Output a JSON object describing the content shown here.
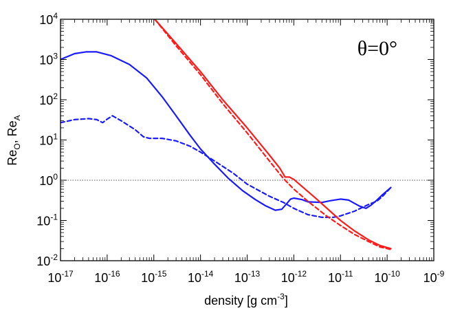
{
  "chart_data": {
    "type": "line",
    "xlabel": "density [g cm",
    "xlabel_sup": "-3",
    "xlabel_end": "]",
    "ylabel_parts": [
      "Re",
      "O",
      ", Re",
      "A"
    ],
    "annotation": "θ=0°",
    "x_scale": "log",
    "y_scale": "log",
    "xlim": [
      1e-17,
      1e-09
    ],
    "ylim": [
      0.01,
      10000
    ],
    "x_ticks": [
      {
        "base": "10",
        "exp": "-17",
        "value": 1e-17
      },
      {
        "base": "10",
        "exp": "-16",
        "value": 1e-16
      },
      {
        "base": "10",
        "exp": "-15",
        "value": 1e-15
      },
      {
        "base": "10",
        "exp": "-14",
        "value": 1e-14
      },
      {
        "base": "10",
        "exp": "-13",
        "value": 1e-13
      },
      {
        "base": "10",
        "exp": "-12",
        "value": 1e-12
      },
      {
        "base": "10",
        "exp": "-11",
        "value": 1e-11
      },
      {
        "base": "10",
        "exp": "-10",
        "value": 1e-10
      },
      {
        "base": "10",
        "exp": "-9",
        "value": 1e-09
      }
    ],
    "y_ticks": [
      {
        "base": "10",
        "exp": "-2",
        "value": 0.01
      },
      {
        "base": "10",
        "exp": "-1",
        "value": 0.1
      },
      {
        "base": "10",
        "exp": "0",
        "value": 1
      },
      {
        "base": "10",
        "exp": "1",
        "value": 10
      },
      {
        "base": "10",
        "exp": "2",
        "value": 100
      },
      {
        "base": "10",
        "exp": "3",
        "value": 1000
      },
      {
        "base": "10",
        "exp": "4",
        "value": 10000
      }
    ],
    "reference_line": {
      "y": 1,
      "style": "dotted",
      "color": "#555555"
    },
    "colors": {
      "blue": "#1a1aff",
      "red": "#ff1a1a"
    },
    "series": [
      {
        "color": "blue",
        "dash": "solid",
        "points": [
          [
            1e-17,
            1000
          ],
          [
            2e-17,
            1400
          ],
          [
            3.5e-17,
            1550
          ],
          [
            6e-17,
            1550
          ],
          [
            1.2e-16,
            1250
          ],
          [
            3e-16,
            750
          ],
          [
            7e-16,
            350
          ],
          [
            1.5e-15,
            120
          ],
          [
            3e-15,
            40
          ],
          [
            6e-15,
            13
          ],
          [
            1e-14,
            6
          ],
          [
            2e-14,
            2.5
          ],
          [
            4e-14,
            1.1
          ],
          [
            8e-14,
            0.55
          ],
          [
            1.5e-13,
            0.33
          ],
          [
            2.5e-13,
            0.23
          ],
          [
            4e-13,
            0.18
          ],
          [
            5.5e-13,
            0.19
          ],
          [
            7e-13,
            0.26
          ],
          [
            8.5e-13,
            0.34
          ],
          [
            1e-12,
            0.36
          ],
          [
            1.5e-12,
            0.33
          ],
          [
            2e-12,
            0.29
          ],
          [
            4e-12,
            0.28
          ],
          [
            6e-12,
            0.31
          ],
          [
            1e-11,
            0.34
          ],
          [
            1.5e-11,
            0.32
          ],
          [
            2.5e-11,
            0.23
          ],
          [
            3.5e-11,
            0.2
          ],
          [
            4.5e-11,
            0.24
          ],
          [
            6e-11,
            0.32
          ],
          [
            8e-11,
            0.44
          ],
          [
            1.2e-10,
            0.66
          ]
        ]
      },
      {
        "color": "blue",
        "dash": "dashed",
        "points": [
          [
            1e-17,
            27
          ],
          [
            2e-17,
            32
          ],
          [
            4e-17,
            34
          ],
          [
            6e-17,
            32
          ],
          [
            8e-17,
            27
          ],
          [
            1e-16,
            33
          ],
          [
            1.3e-16,
            40
          ],
          [
            2e-16,
            30
          ],
          [
            4e-16,
            18
          ],
          [
            6e-16,
            12
          ],
          [
            8e-16,
            11
          ],
          [
            1.5e-15,
            11
          ],
          [
            3e-15,
            9.5
          ],
          [
            6e-15,
            7
          ],
          [
            1e-14,
            5
          ],
          [
            2e-14,
            3
          ],
          [
            5e-14,
            1.5
          ],
          [
            1e-13,
            0.8
          ],
          [
            3e-13,
            0.4
          ],
          [
            6e-13,
            0.28
          ],
          [
            1e-12,
            0.2
          ],
          [
            2e-12,
            0.14
          ],
          [
            4e-12,
            0.12
          ],
          [
            7e-12,
            0.12
          ],
          [
            1e-11,
            0.13
          ],
          [
            2e-11,
            0.17
          ],
          [
            4e-11,
            0.25
          ],
          [
            6e-11,
            0.3
          ],
          [
            8e-11,
            0.4
          ],
          [
            1.2e-10,
            0.66
          ]
        ]
      },
      {
        "color": "red",
        "dash": "solid",
        "points": [
          [
            1.05e-15,
            10000
          ],
          [
            3e-15,
            2500
          ],
          [
            1e-14,
            500
          ],
          [
            3e-14,
            100
          ],
          [
            1e-13,
            20
          ],
          [
            3e-13,
            4.2
          ],
          [
            5e-13,
            2
          ],
          [
            6.5e-13,
            1.2
          ],
          [
            8e-13,
            1.2
          ],
          [
            1e-12,
            1.05
          ],
          [
            1.5e-12,
            0.7
          ],
          [
            3e-12,
            0.35
          ],
          [
            6e-12,
            0.17
          ],
          [
            1e-11,
            0.1
          ],
          [
            2e-11,
            0.055
          ],
          [
            4e-11,
            0.033
          ],
          [
            7e-11,
            0.024
          ],
          [
            1.2e-10,
            0.02
          ]
        ]
      },
      {
        "color": "red",
        "dash": "dashed",
        "points": [
          [
            1.05e-15,
            10000
          ],
          [
            3e-15,
            2200
          ],
          [
            1e-14,
            420
          ],
          [
            3e-14,
            80
          ],
          [
            1e-13,
            15
          ],
          [
            3e-13,
            3
          ],
          [
            6e-13,
            1.1
          ],
          [
            1e-12,
            0.6
          ],
          [
            2e-12,
            0.3
          ],
          [
            5e-12,
            0.13
          ],
          [
            1e-11,
            0.075
          ],
          [
            2e-11,
            0.045
          ],
          [
            4e-11,
            0.03
          ],
          [
            7e-11,
            0.022
          ],
          [
            1.2e-10,
            0.019
          ]
        ]
      }
    ]
  }
}
